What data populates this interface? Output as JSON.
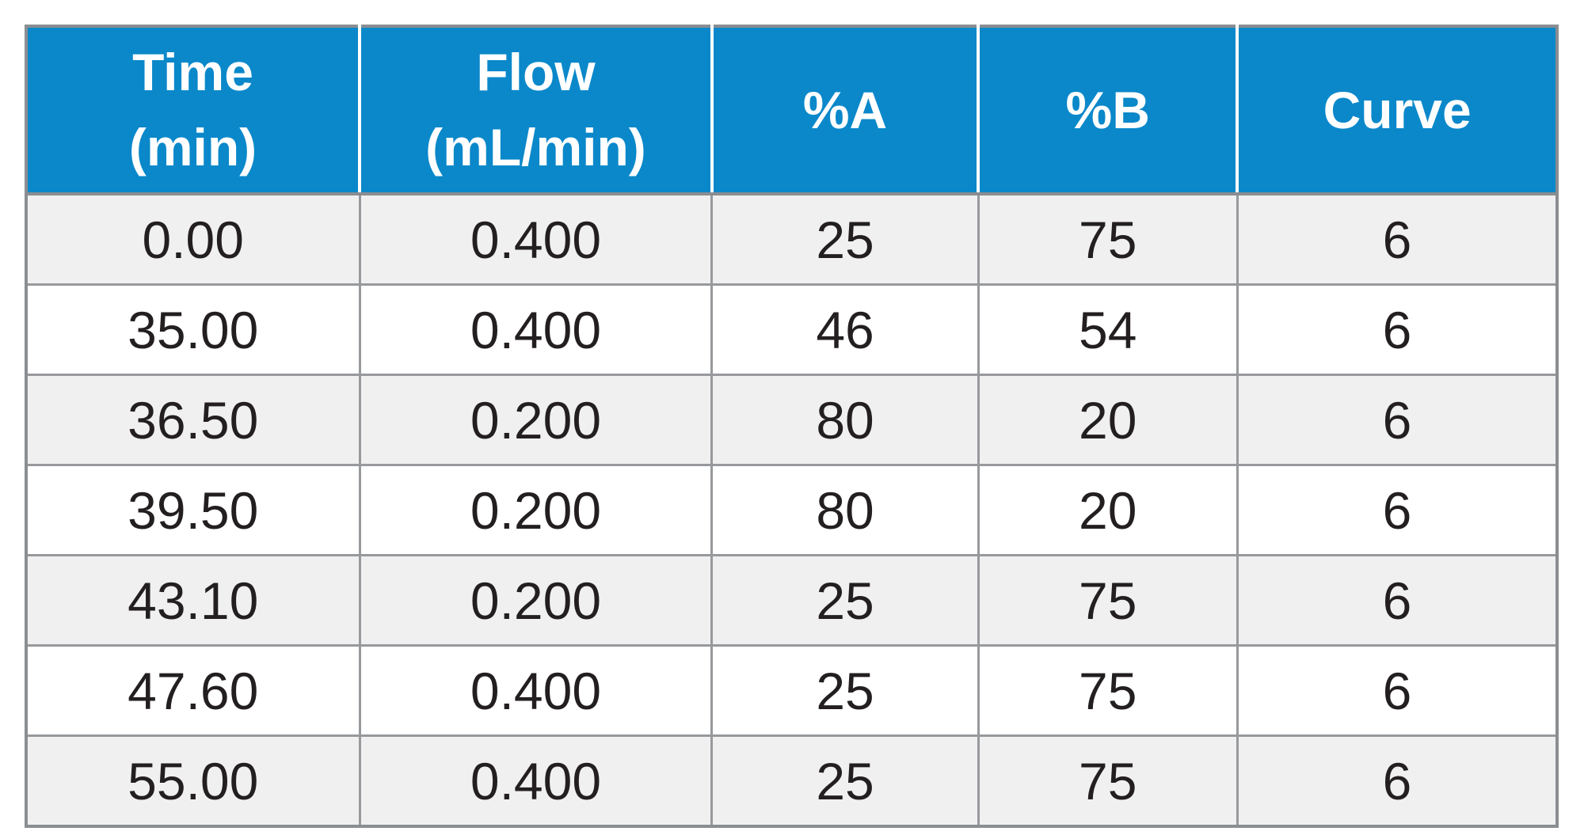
{
  "table": {
    "title": "gradient-table",
    "columns": [
      {
        "line1": "Time",
        "line2": "(min)"
      },
      {
        "line1": "Flow",
        "line2": "(mL/min)"
      },
      {
        "line1": "%A",
        "line2": ""
      },
      {
        "line1": "%B",
        "line2": ""
      },
      {
        "line1": "Curve",
        "line2": ""
      }
    ],
    "rows": [
      [
        "0.00",
        "0.400",
        "25",
        "75",
        "6"
      ],
      [
        "35.00",
        "0.400",
        "46",
        "54",
        "6"
      ],
      [
        "36.50",
        "0.200",
        "80",
        "20",
        "6"
      ],
      [
        "39.50",
        "0.200",
        "80",
        "20",
        "6"
      ],
      [
        "43.10",
        "0.200",
        "25",
        "75",
        "6"
      ],
      [
        "47.60",
        "0.400",
        "25",
        "75",
        "6"
      ],
      [
        "55.00",
        "0.400",
        "25",
        "75",
        "6"
      ]
    ],
    "colors": {
      "header_bg": "#0a88ca",
      "header_text": "#ffffff",
      "row_alt_bg": "#f0f0f1",
      "row_bg": "#ffffff",
      "grid_border": "#97999c",
      "outer_border": "#8b8e91",
      "cell_text": "#231f20"
    }
  }
}
